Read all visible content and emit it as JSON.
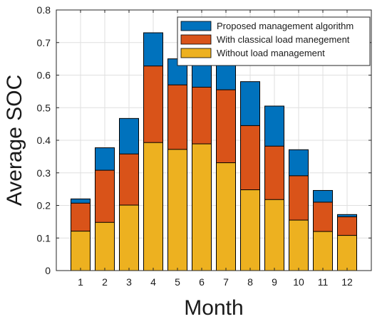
{
  "chart_data": {
    "type": "bar",
    "stacking": "overlay",
    "xlabel": "Month",
    "ylabel": "Average SOC",
    "ylim": [
      0,
      0.8
    ],
    "xlim": [
      0,
      13
    ],
    "grid": true,
    "legend_position": "top-right",
    "categories": [
      "1",
      "2",
      "3",
      "4",
      "5",
      "6",
      "7",
      "8",
      "9",
      "10",
      "11",
      "12"
    ],
    "yticks": [
      "0",
      "0.1",
      "0.2",
      "0.3",
      "0.4",
      "0.5",
      "0.6",
      "0.7",
      "0.8"
    ],
    "series": [
      {
        "name": "Proposed management algorithm",
        "color": "#0072bd",
        "values": [
          0.22,
          0.377,
          0.467,
          0.73,
          0.65,
          0.65,
          0.65,
          0.58,
          0.505,
          0.371,
          0.246,
          0.172
        ]
      },
      {
        "name": "With classical load manegement",
        "color": "#d95319",
        "values": [
          0.207,
          0.308,
          0.358,
          0.628,
          0.57,
          0.563,
          0.555,
          0.445,
          0.382,
          0.291,
          0.21,
          0.165
        ]
      },
      {
        "name": "Without load management",
        "color": "#edb120",
        "values": [
          0.121,
          0.148,
          0.201,
          0.393,
          0.372,
          0.389,
          0.331,
          0.248,
          0.218,
          0.155,
          0.12,
          0.108
        ]
      }
    ]
  }
}
